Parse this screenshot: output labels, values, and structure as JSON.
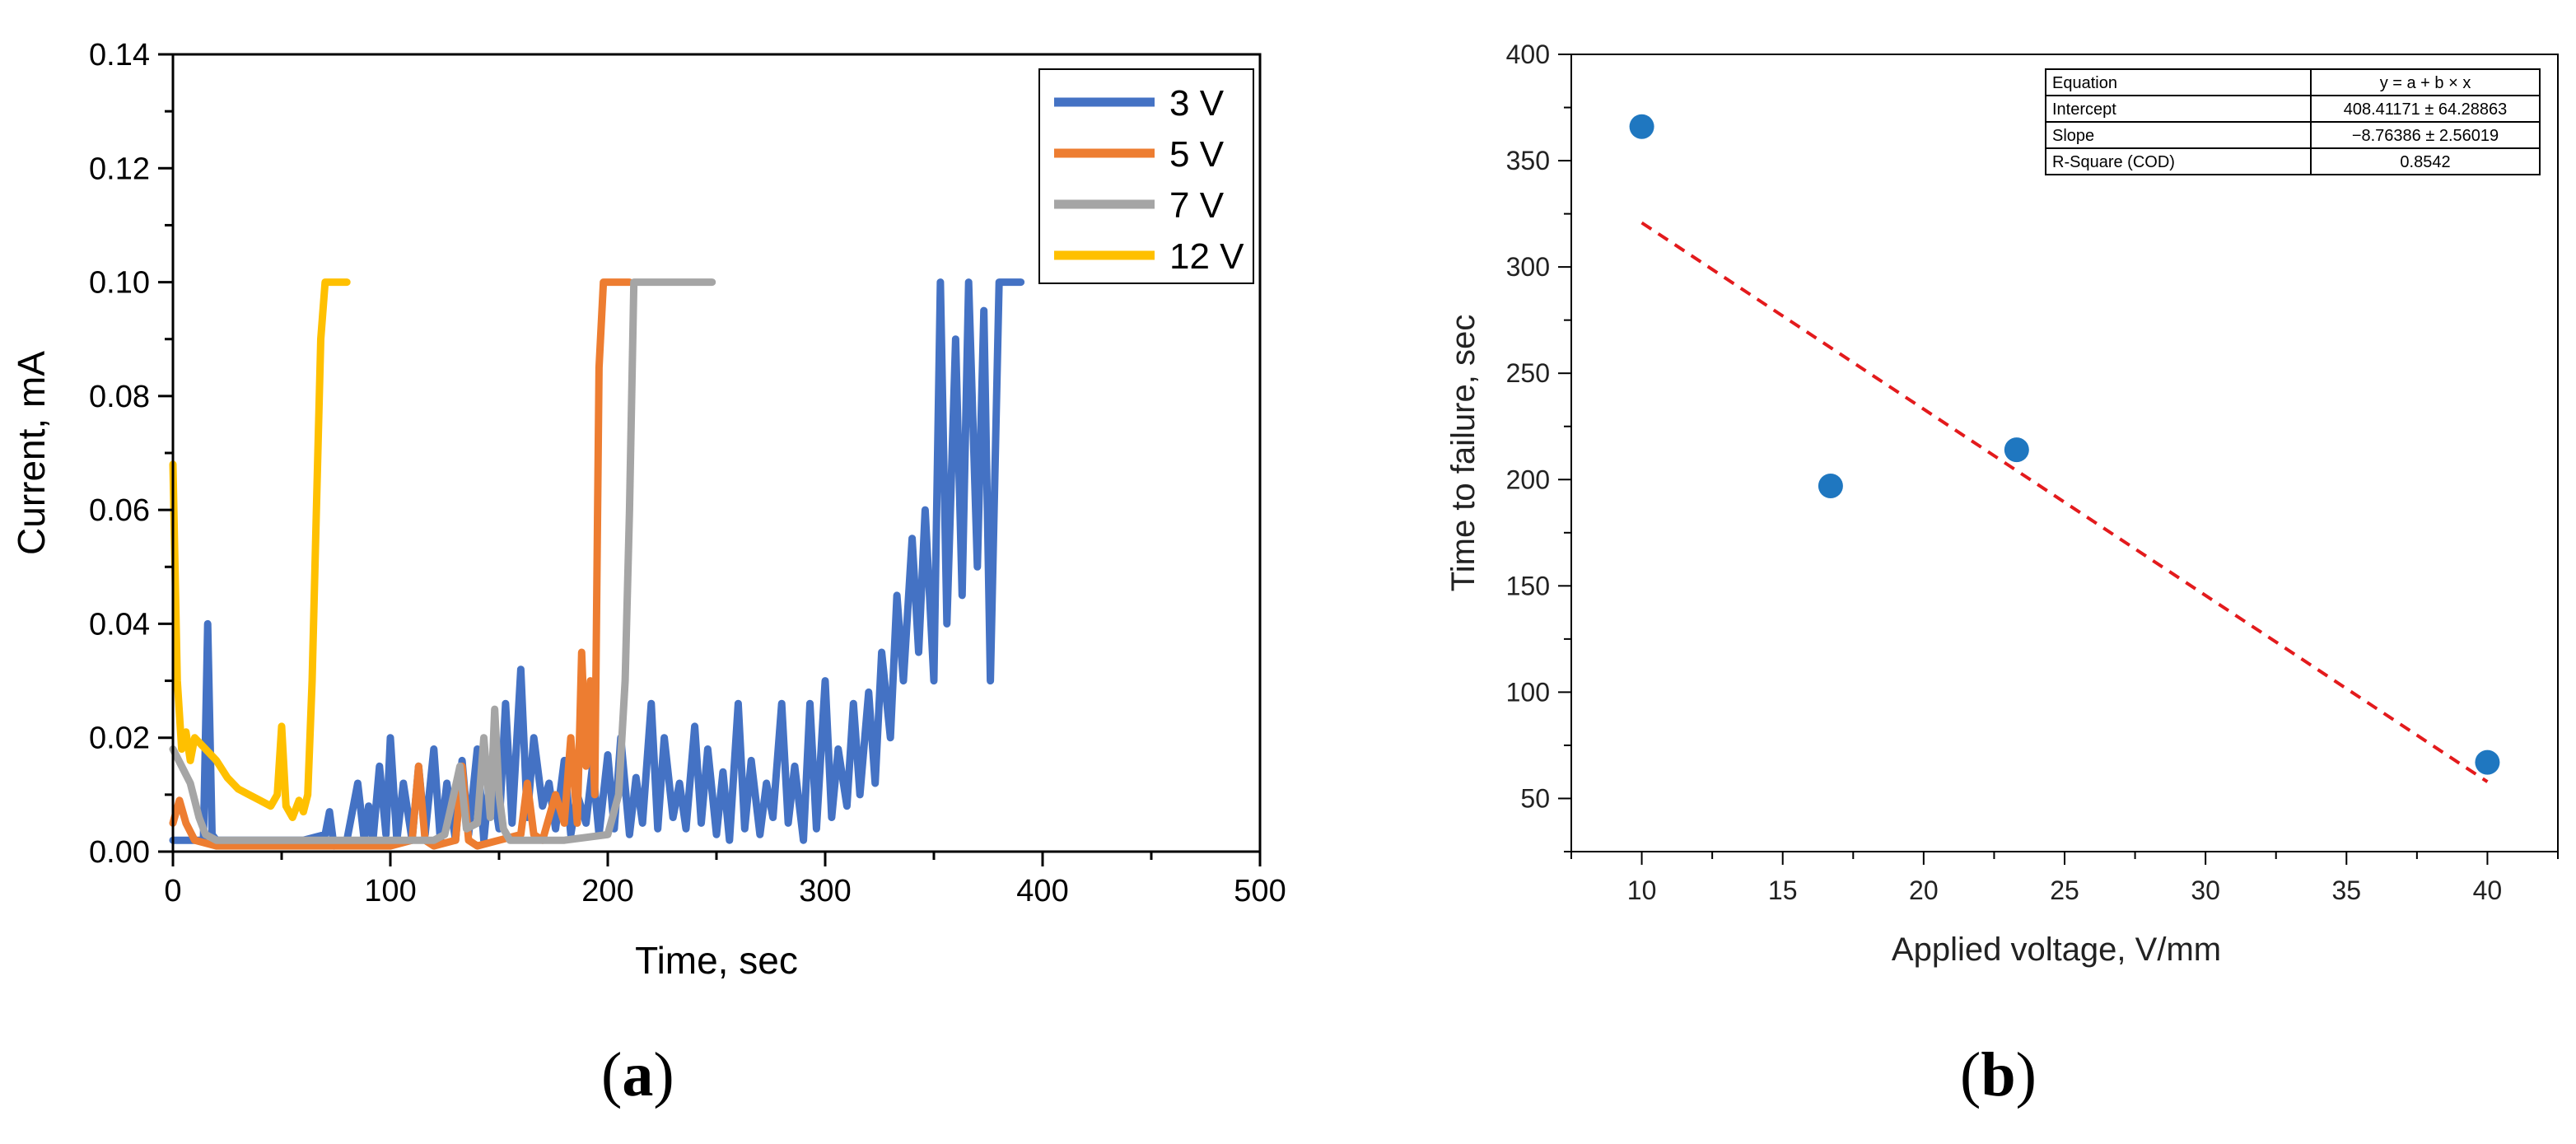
{
  "figure": {
    "panel_a_label": {
      "open": "(",
      "letter": "a",
      "close": ")"
    },
    "panel_b_label": {
      "open": "(",
      "letter": "b",
      "close": ")"
    }
  },
  "chart_data": [
    {
      "type": "line",
      "panel": "a",
      "title": "",
      "xlabel": "Time, sec",
      "ylabel": "Current, mA",
      "xlim": [
        0,
        500
      ],
      "ylim": [
        0,
        0.14
      ],
      "xticks": [
        0,
        100,
        200,
        300,
        400,
        500
      ],
      "xtick_labels": [
        "0",
        "100",
        "200",
        "300",
        "400",
        "500"
      ],
      "yticks": [
        0,
        0.02,
        0.04,
        0.06,
        0.08,
        0.1,
        0.12,
        0.14
      ],
      "ytick_labels": [
        "0.00",
        "0.02",
        "0.04",
        "0.06",
        "0.08",
        "0.10",
        "0.12",
        "0.14"
      ],
      "legend_position": "top-right",
      "grid": false,
      "series": [
        {
          "name": "3 V",
          "color": "#4472C4",
          "x": [
            0,
            10,
            14,
            16,
            18,
            20,
            30,
            50,
            60,
            70,
            72,
            74,
            80,
            85,
            88,
            90,
            92,
            95,
            98,
            100,
            103,
            106,
            110,
            113,
            116,
            120,
            123,
            126,
            130,
            133,
            136,
            140,
            143,
            146,
            150,
            153,
            156,
            160,
            163,
            166,
            170,
            173,
            176,
            180,
            183,
            186,
            190,
            193,
            196,
            200,
            203,
            206,
            210,
            213,
            216,
            220,
            223,
            226,
            230,
            233,
            236,
            240,
            243,
            246,
            250,
            253,
            256,
            260,
            263,
            266,
            270,
            273,
            276,
            280,
            283,
            286,
            290,
            293,
            296,
            300,
            303,
            306,
            310,
            313,
            316,
            320,
            323,
            326,
            330,
            333,
            336,
            340,
            343,
            346,
            350,
            353,
            356,
            360,
            363,
            366,
            370,
            373,
            376,
            380,
            385,
            390
          ],
          "y": [
            0.002,
            0.002,
            0.002,
            0.04,
            0.003,
            0.002,
            0.002,
            0.002,
            0.002,
            0.003,
            0.007,
            0.001,
            0.002,
            0.012,
            0.002,
            0.008,
            0.002,
            0.015,
            0.003,
            0.02,
            0.002,
            0.012,
            0.002,
            0.015,
            0.003,
            0.018,
            0.002,
            0.012,
            0.002,
            0.016,
            0.003,
            0.018,
            0.002,
            0.014,
            0.004,
            0.026,
            0.005,
            0.032,
            0.006,
            0.02,
            0.008,
            0.012,
            0.004,
            0.016,
            0.003,
            0.01,
            0.005,
            0.015,
            0.003,
            0.017,
            0.004,
            0.02,
            0.003,
            0.013,
            0.005,
            0.026,
            0.004,
            0.02,
            0.006,
            0.012,
            0.004,
            0.022,
            0.005,
            0.018,
            0.003,
            0.014,
            0.002,
            0.026,
            0.004,
            0.016,
            0.003,
            0.012,
            0.006,
            0.026,
            0.005,
            0.015,
            0.002,
            0.026,
            0.004,
            0.03,
            0.006,
            0.018,
            0.008,
            0.026,
            0.01,
            0.028,
            0.012,
            0.035,
            0.02,
            0.045,
            0.03,
            0.055,
            0.035,
            0.06,
            0.03,
            0.1,
            0.04,
            0.09,
            0.045,
            0.1,
            0.05,
            0.095,
            0.03,
            0.1,
            0.1,
            0.1
          ]
        },
        {
          "name": "5 V",
          "color": "#ED7D31",
          "x": [
            0,
            3,
            6,
            10,
            20,
            40,
            60,
            80,
            100,
            110,
            113,
            116,
            120,
            130,
            133,
            136,
            140,
            150,
            160,
            163,
            166,
            170,
            176,
            180,
            183,
            186,
            188,
            190,
            192,
            194,
            196,
            198,
            200,
            210
          ],
          "y": [
            0.005,
            0.009,
            0.005,
            0.002,
            0.001,
            0.001,
            0.001,
            0.001,
            0.001,
            0.002,
            0.015,
            0.002,
            0.001,
            0.002,
            0.015,
            0.002,
            0.001,
            0.002,
            0.003,
            0.012,
            0.003,
            0.002,
            0.01,
            0.005,
            0.02,
            0.005,
            0.035,
            0.015,
            0.03,
            0.01,
            0.085,
            0.1,
            0.1,
            0.1
          ]
        },
        {
          "name": "7 V",
          "color": "#A5A5A5",
          "x": [
            0,
            4,
            8,
            12,
            15,
            20,
            40,
            60,
            80,
            100,
            120,
            125,
            128,
            132,
            135,
            140,
            143,
            146,
            148,
            150,
            152,
            155,
            160,
            180,
            200,
            205,
            208,
            210,
            212,
            215,
            220,
            230,
            248
          ],
          "y": [
            0.018,
            0.015,
            0.012,
            0.006,
            0.003,
            0.002,
            0.002,
            0.002,
            0.002,
            0.002,
            0.002,
            0.003,
            0.008,
            0.015,
            0.004,
            0.005,
            0.02,
            0.006,
            0.025,
            0.01,
            0.004,
            0.002,
            0.002,
            0.002,
            0.003,
            0.01,
            0.03,
            0.06,
            0.1,
            0.1,
            0.1,
            0.1,
            0.1
          ]
        },
        {
          "name": "12 V",
          "color": "#FFC000",
          "x": [
            0,
            2,
            4,
            6,
            8,
            10,
            15,
            20,
            25,
            30,
            35,
            40,
            45,
            48,
            50,
            52,
            55,
            58,
            60,
            62,
            64,
            66,
            68,
            70,
            75,
            80
          ],
          "y": [
            0.068,
            0.03,
            0.018,
            0.021,
            0.016,
            0.02,
            0.018,
            0.016,
            0.013,
            0.011,
            0.01,
            0.009,
            0.008,
            0.01,
            0.022,
            0.008,
            0.006,
            0.009,
            0.007,
            0.01,
            0.03,
            0.06,
            0.09,
            0.1,
            0.1,
            0.1
          ]
        }
      ]
    },
    {
      "type": "scatter",
      "panel": "b",
      "title": "",
      "xlabel": "Applied voltage, V/mm",
      "ylabel": "Time to failure, sec",
      "xlim": [
        7.5,
        42.5
      ],
      "ylim": [
        25,
        400
      ],
      "xticks": [
        10,
        15,
        20,
        25,
        30,
        35,
        40
      ],
      "xtick_labels": [
        "10",
        "15",
        "20",
        "25",
        "30",
        "35",
        "40"
      ],
      "yticks": [
        50,
        100,
        150,
        200,
        250,
        300,
        350,
        400
      ],
      "ytick_labels": [
        "50",
        "100",
        "150",
        "200",
        "250",
        "300",
        "350",
        "400"
      ],
      "grid": false,
      "point_color": "#1F77C0",
      "fit_color": "#E31A1C",
      "points": {
        "x": [
          10,
          16.7,
          23.3,
          40
        ],
        "y": [
          366,
          197,
          214,
          67
        ]
      },
      "fit": {
        "intercept": 408.41171,
        "slope": -8.76386,
        "x_range": [
          10,
          40
        ]
      },
      "fit_table": [
        [
          "Equation",
          "y = a + b × x"
        ],
        [
          "Intercept",
          "408.41171 ± 64.28863"
        ],
        [
          "Slope",
          "−8.76386 ± 2.56019"
        ],
        [
          "R-Square (COD)",
          "0.8542"
        ]
      ]
    }
  ]
}
